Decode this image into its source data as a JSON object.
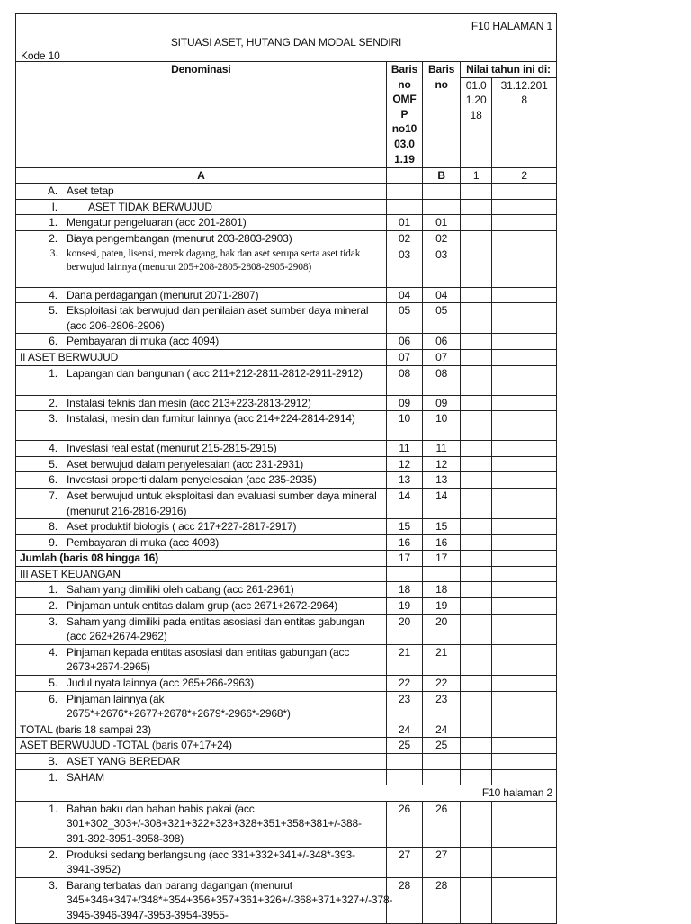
{
  "header": {
    "page_label": "F10 HALAMAN 1",
    "title": "SITUASI ASET, HUTANG DAN MODAL SENDIRI",
    "kode": "Kode 10"
  },
  "columns": {
    "denominasi": "Denominasi",
    "baris_omfp": "Baris no OMFP no1003.01.19",
    "baris_omfp_lines": [
      "Baris",
      "no",
      "OMF",
      "P",
      "no10",
      "03.0",
      "1.19"
    ],
    "baris_no_lines": [
      "Baris",
      "no"
    ],
    "nilai": "Nilai tahun ini di:",
    "date1_lines": [
      "01.0",
      "1.20",
      "18"
    ],
    "date2_lines": [
      "31.12.201",
      "8"
    ],
    "letter_a": "A",
    "letter_b": "B",
    "col1": "1",
    "col2": "2"
  },
  "rows": [
    {
      "num": "A.",
      "text": "Aset tetap",
      "omfp": "",
      "baris": ""
    },
    {
      "num": "I.",
      "text": "ASET TIDAK BERWUJUD",
      "omfp": "",
      "baris": "",
      "indent": true
    },
    {
      "num": "1.",
      "text": "Mengatur pengeluaran (acc 201-2801)",
      "omfp": "01",
      "baris": "01"
    },
    {
      "num": "2.",
      "text": "Biaya pengembangan (menurut 203-2803-2903)",
      "omfp": "02",
      "baris": "02"
    },
    {
      "num": "3.",
      "text": "konsesi, paten, lisensi, merek dagang, hak dan aset serupa serta aset tidak berwujud lainnya (menurut 205+208-2805-2808-2905-2908)",
      "omfp": "03",
      "baris": "03",
      "serif": true,
      "h": 45
    },
    {
      "num": "4.",
      "text": "Dana perdagangan (menurut 2071-2807)",
      "omfp": "04",
      "baris": "04"
    },
    {
      "num": "5.",
      "text": "Eksploitasi tak berwujud dan penilaian aset sumber daya mineral (acc 206-2806-2906)",
      "omfp": "05",
      "baris": "05",
      "h": 33
    },
    {
      "num": "6.",
      "text": "Pembayaran di muka (acc 4094)",
      "omfp": "06",
      "baris": "06"
    },
    {
      "plain": "II ASET BERWUJUD",
      "omfp": "07",
      "baris": "07"
    },
    {
      "num": "1.",
      "text": "Lapangan dan bangunan ( acc 211+212-2811-2812-2911-2912)",
      "omfp": "08",
      "baris": "08",
      "h": 33
    },
    {
      "num": "2.",
      "text": "Instalasi teknis dan mesin (acc 213+223-2813-2912)",
      "omfp": "09",
      "baris": "09"
    },
    {
      "num": "3.",
      "text": "Instalasi, mesin dan furnitur lainnya (acc 214+224-2814-2914)",
      "omfp": "10",
      "baris": "10",
      "h": 33
    },
    {
      "num": "4.",
      "text": "Investasi real estat (menurut 215-2815-2915)",
      "omfp": "11",
      "baris": "11"
    },
    {
      "num": "5.",
      "text": "Aset berwujud dalam penyelesaian (acc 231-2931)",
      "omfp": "12",
      "baris": "12"
    },
    {
      "num": "6.",
      "text": "Investasi properti dalam penyelesaian (acc 235-2935)",
      "omfp": "13",
      "baris": "13"
    },
    {
      "num": "7.",
      "text": "Aset berwujud untuk eksploitasi dan evaluasi sumber daya mineral (menurut 216-2816-2916)",
      "omfp": "14",
      "baris": "14",
      "h": 34
    },
    {
      "num": "8.",
      "text": "Aset produktif biologis ( acc 217+227-2817-2917)",
      "omfp": "15",
      "baris": "15"
    },
    {
      "num": "9.",
      "text": "Pembayaran di muka (acc 4093)",
      "omfp": "16",
      "baris": "16"
    },
    {
      "plain": "Jumlah (baris 08 hingga 16)",
      "omfp": "17",
      "baris": "17",
      "bold": true
    },
    {
      "plain": "III ASET KEUANGAN",
      "omfp": "",
      "baris": ""
    },
    {
      "num": "1.",
      "text": "Saham yang dimiliki oleh cabang (acc 261-2961)",
      "omfp": "18",
      "baris": "18"
    },
    {
      "num": "2.",
      "text": "Pinjaman untuk entitas dalam grup (acc 2671+2672-2964)",
      "omfp": "19",
      "baris": "19"
    },
    {
      "num": "3.",
      "text": "Saham yang dimiliki pada entitas asosiasi dan entitas gabungan (acc 262+2674-2962)",
      "omfp": "20",
      "baris": "20",
      "h": 33
    },
    {
      "num": "4.",
      "text": "Pinjaman kepada entitas asosiasi dan entitas gabungan (acc 2673+2674-2965)",
      "omfp": "21",
      "baris": "21",
      "h": 33
    },
    {
      "num": "5.",
      "text": "Judul nyata lainnya (acc 265+266-2963)",
      "omfp": "22",
      "baris": "22"
    },
    {
      "num": "6.",
      "text": "Pinjaman lainnya (ak 2675*+2676*+2677+2678*+2679*-2966*-2968*)",
      "omfp": "23",
      "baris": "23",
      "h": 34
    },
    {
      "plain": "TOTAL (baris 18 sampai 23)",
      "omfp": "24",
      "baris": "24"
    },
    {
      "plain": "ASET BERWUJUD -TOTAL (baris 07+17+24)",
      "omfp": "25",
      "baris": "25"
    },
    {
      "num": "B.",
      "text": "ASET YANG BEREDAR",
      "omfp": "",
      "baris": ""
    },
    {
      "num": "1.",
      "text": "SAHAM",
      "omfp": "",
      "baris": ""
    },
    {
      "page2": "F10 halaman 2"
    },
    {
      "num": "1.",
      "text": "Bahan baku dan bahan habis pakai (acc 301+302_303+/-308+321+322+323+328+351+358+381+/-388-391-392-3951-3958-398)",
      "omfp": "26",
      "baris": "26",
      "h": 50
    },
    {
      "num": "2.",
      "text": "Produksi sedang berlangsung (acc 331+332+341+/-348*-393-3941-3952)",
      "omfp": "27",
      "baris": "27",
      "h": 33
    },
    {
      "num": "3.",
      "text": "Barang terbatas dan barang dagangan (menurut 345+346+347+/348*+354+356+357+361+326+/-368+371+327+/-378-3945-3946-3947-3953-3954-3955-",
      "omfp": "28",
      "baris": "28",
      "h": 50
    }
  ]
}
